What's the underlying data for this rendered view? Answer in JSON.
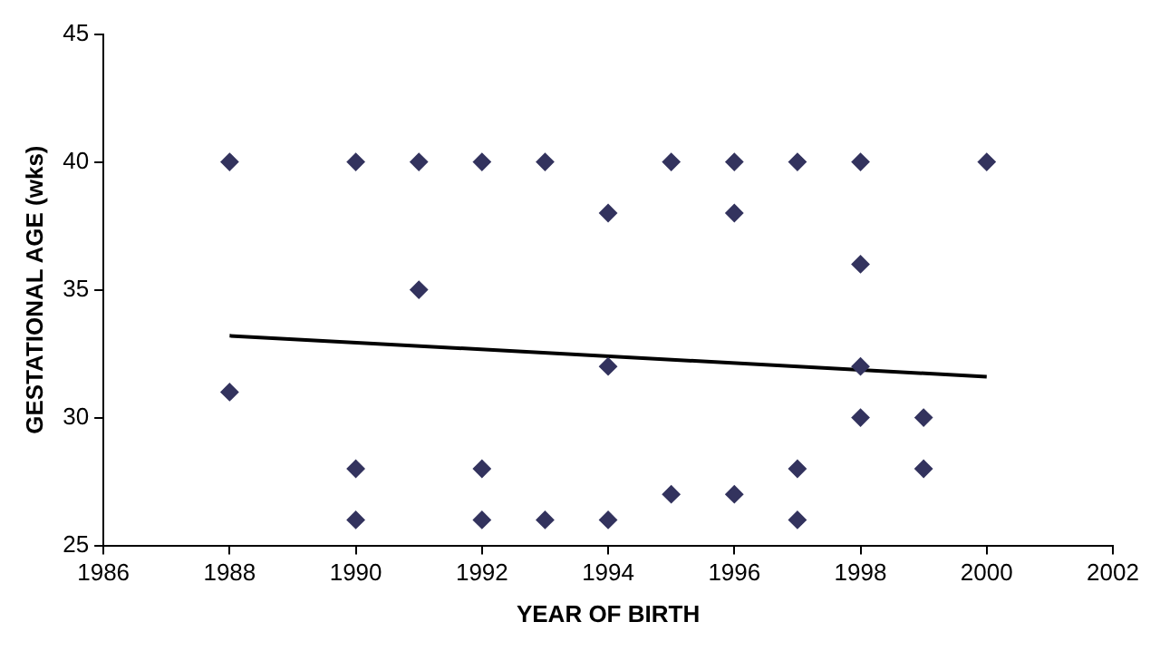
{
  "chart_data": {
    "type": "scatter",
    "xlabel": "YEAR OF BIRTH",
    "ylabel": "GESTATIONAL AGE (wks)",
    "xlim": [
      1986,
      2002
    ],
    "xticks": [
      1986,
      1988,
      1990,
      1992,
      1994,
      1996,
      1998,
      2000,
      2002
    ],
    "ylim": [
      25,
      45
    ],
    "yticks": [
      25,
      30,
      35,
      40,
      45
    ],
    "grid": false,
    "legend": false,
    "marker": "diamond",
    "series": [
      {
        "color": "#33335e",
        "x": [
          1988,
          1988,
          1990,
          1990,
          1990,
          1991,
          1991,
          1992,
          1992,
          1992,
          1993,
          1993,
          1994,
          1994,
          1994,
          1995,
          1995,
          1996,
          1996,
          1996,
          1997,
          1997,
          1997,
          1998,
          1998,
          1998,
          1998,
          1999,
          1999,
          2000
        ],
        "values": [
          40,
          31,
          40,
          28,
          26,
          40,
          35,
          40,
          28,
          26,
          40,
          26,
          38,
          32,
          26,
          40,
          27,
          40,
          38,
          27,
          40,
          28,
          26,
          40,
          36,
          32,
          30,
          30,
          28,
          40
        ]
      },
      {
        "type": "line",
        "color": "#000000",
        "marker": "none",
        "x": [
          1988,
          2000
        ],
        "values": [
          33.2,
          31.6
        ]
      }
    ]
  }
}
